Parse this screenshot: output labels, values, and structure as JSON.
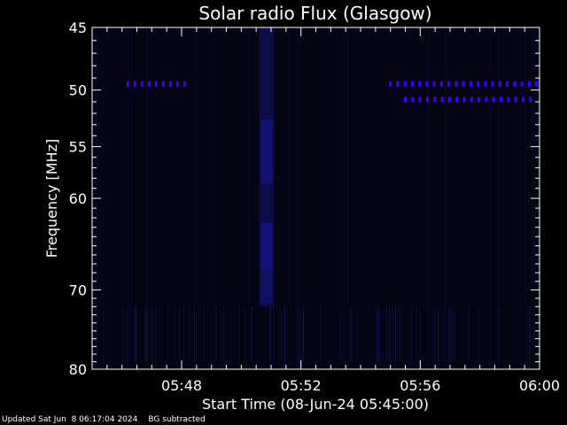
{
  "chart_data": {
    "type": "heatmap",
    "title": "Solar radio Flux (Glasgow)",
    "xlabel": "Start Time (08-Jun-24 05:45:00)",
    "ylabel": "Frequency [MHz]",
    "x_unit": "minutes after 05:45:00",
    "xlim": [
      0,
      15
    ],
    "ylim": [
      45,
      80
    ],
    "y_scale": "log",
    "y_inverted": true,
    "x_ticks": [
      {
        "value": 3,
        "label": "05:48"
      },
      {
        "value": 7,
        "label": "05:52"
      },
      {
        "value": 11,
        "label": "05:56"
      },
      {
        "value": 15,
        "label": "06:00"
      }
    ],
    "y_ticks": [
      {
        "value": 45,
        "label": "45"
      },
      {
        "value": 50,
        "label": "50"
      },
      {
        "value": 55,
        "label": "55"
      },
      {
        "value": 60,
        "label": "60"
      },
      {
        "value": 70,
        "label": "70"
      },
      {
        "value": 80,
        "label": "80"
      }
    ],
    "background_color": "#050514",
    "emission_color": "#1a1aa6",
    "interference_color": "#3c00ff",
    "features": [
      {
        "name": "enhanced emission band",
        "time_range": [
          5.6,
          6.1
        ],
        "freq_range": [
          45,
          72
        ],
        "intensity": "moderate"
      },
      {
        "name": "narrowband interference",
        "time_range": [
          1.2,
          3.1
        ],
        "freq": 49.5,
        "intensity": "high"
      },
      {
        "name": "narrowband interference",
        "time_range": [
          10.0,
          14.9
        ],
        "freq": 49.5,
        "intensity": "high"
      },
      {
        "name": "narrowband interference",
        "time_range": [
          10.5,
          14.7
        ],
        "freq": 50.8,
        "intensity": "high"
      }
    ]
  },
  "footer": {
    "updated": "Updated Sat Jun  8 06:17:04 2024",
    "note": "BG subtracted"
  },
  "colors": {
    "axes": "#ffffff",
    "page_background": "#000000"
  }
}
